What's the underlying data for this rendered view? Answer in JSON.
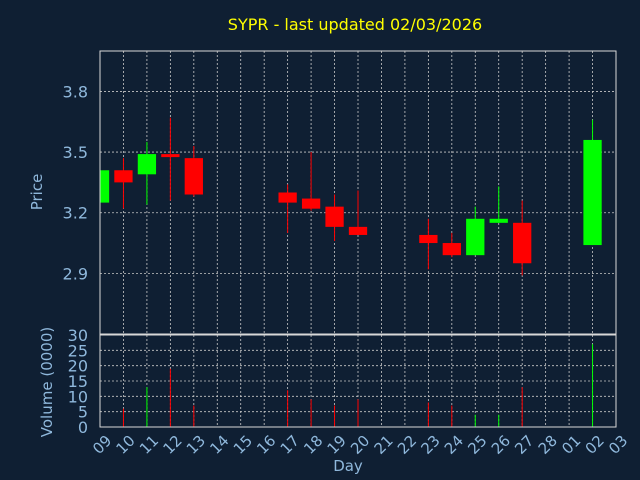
{
  "title": "SYPR - last updated 02/03/2026",
  "price_axis_label": "Price",
  "volume_axis_label": "Volume (0000)",
  "x_axis_label": "Day",
  "colors": {
    "background": "#0f1f33",
    "up": "#00ff00",
    "down": "#ff0000",
    "title": "#ffff00",
    "axis_text": "#8fb8dc",
    "grid": "#c8c8c8"
  },
  "chart_data": {
    "type": "candlestick",
    "x_tick_labels": [
      "09",
      "10",
      "11",
      "12",
      "13",
      "14",
      "15",
      "16",
      "17",
      "18",
      "19",
      "20",
      "21",
      "22",
      "23",
      "24",
      "25",
      "26",
      "27",
      "28",
      "01",
      "02",
      "03"
    ],
    "price_axis": {
      "ticks": [
        2.9,
        3.2,
        3.5,
        3.8
      ],
      "tick_labels": [
        "2.9",
        "3.2",
        "3.5",
        "3.8"
      ],
      "ylim": [
        2.6,
        4.0
      ]
    },
    "volume_axis": {
      "ticks": [
        0,
        5,
        10,
        15,
        20,
        25,
        30
      ],
      "tick_labels": [
        "0",
        "5",
        "10",
        "15",
        "20",
        "25",
        "30"
      ],
      "ylim": [
        0,
        30
      ]
    },
    "grid": true,
    "candles": [
      {
        "day": "09",
        "open": 3.25,
        "high": 3.41,
        "low": 3.25,
        "close": 3.41,
        "volume": 0
      },
      {
        "day": "10",
        "open": 3.41,
        "high": 3.47,
        "low": 3.22,
        "close": 3.35,
        "volume": 6
      },
      {
        "day": "11",
        "open": 3.39,
        "high": 3.55,
        "low": 3.24,
        "close": 3.49,
        "volume": 13
      },
      {
        "day": "12",
        "open": 3.49,
        "high": 3.67,
        "low": 3.26,
        "close": 3.48,
        "volume": 19
      },
      {
        "day": "13",
        "open": 3.47,
        "high": 3.53,
        "low": 3.28,
        "close": 3.29,
        "volume": 7
      },
      {
        "day": "17",
        "open": 3.3,
        "high": 3.34,
        "low": 3.1,
        "close": 3.25,
        "volume": 12
      },
      {
        "day": "18",
        "open": 3.27,
        "high": 3.5,
        "low": 3.21,
        "close": 3.22,
        "volume": 9
      },
      {
        "day": "19",
        "open": 3.23,
        "high": 3.29,
        "low": 3.06,
        "close": 3.13,
        "volume": 7
      },
      {
        "day": "20",
        "open": 3.13,
        "high": 3.31,
        "low": 3.09,
        "close": 3.09,
        "volume": 9
      },
      {
        "day": "23",
        "open": 3.09,
        "high": 3.17,
        "low": 2.92,
        "close": 3.05,
        "volume": 8
      },
      {
        "day": "24",
        "open": 3.05,
        "high": 3.1,
        "low": 2.98,
        "close": 2.99,
        "volume": 7
      },
      {
        "day": "25",
        "open": 2.99,
        "high": 3.23,
        "low": 2.99,
        "close": 3.17,
        "volume": 4
      },
      {
        "day": "26",
        "open": 3.15,
        "high": 3.33,
        "low": 3.15,
        "close": 3.17,
        "volume": 4
      },
      {
        "day": "27",
        "open": 3.15,
        "high": 3.26,
        "low": 2.89,
        "close": 2.95,
        "volume": 13
      },
      {
        "day": "02",
        "open": 3.04,
        "high": 3.66,
        "low": 3.04,
        "close": 3.56,
        "volume": 27
      }
    ]
  }
}
